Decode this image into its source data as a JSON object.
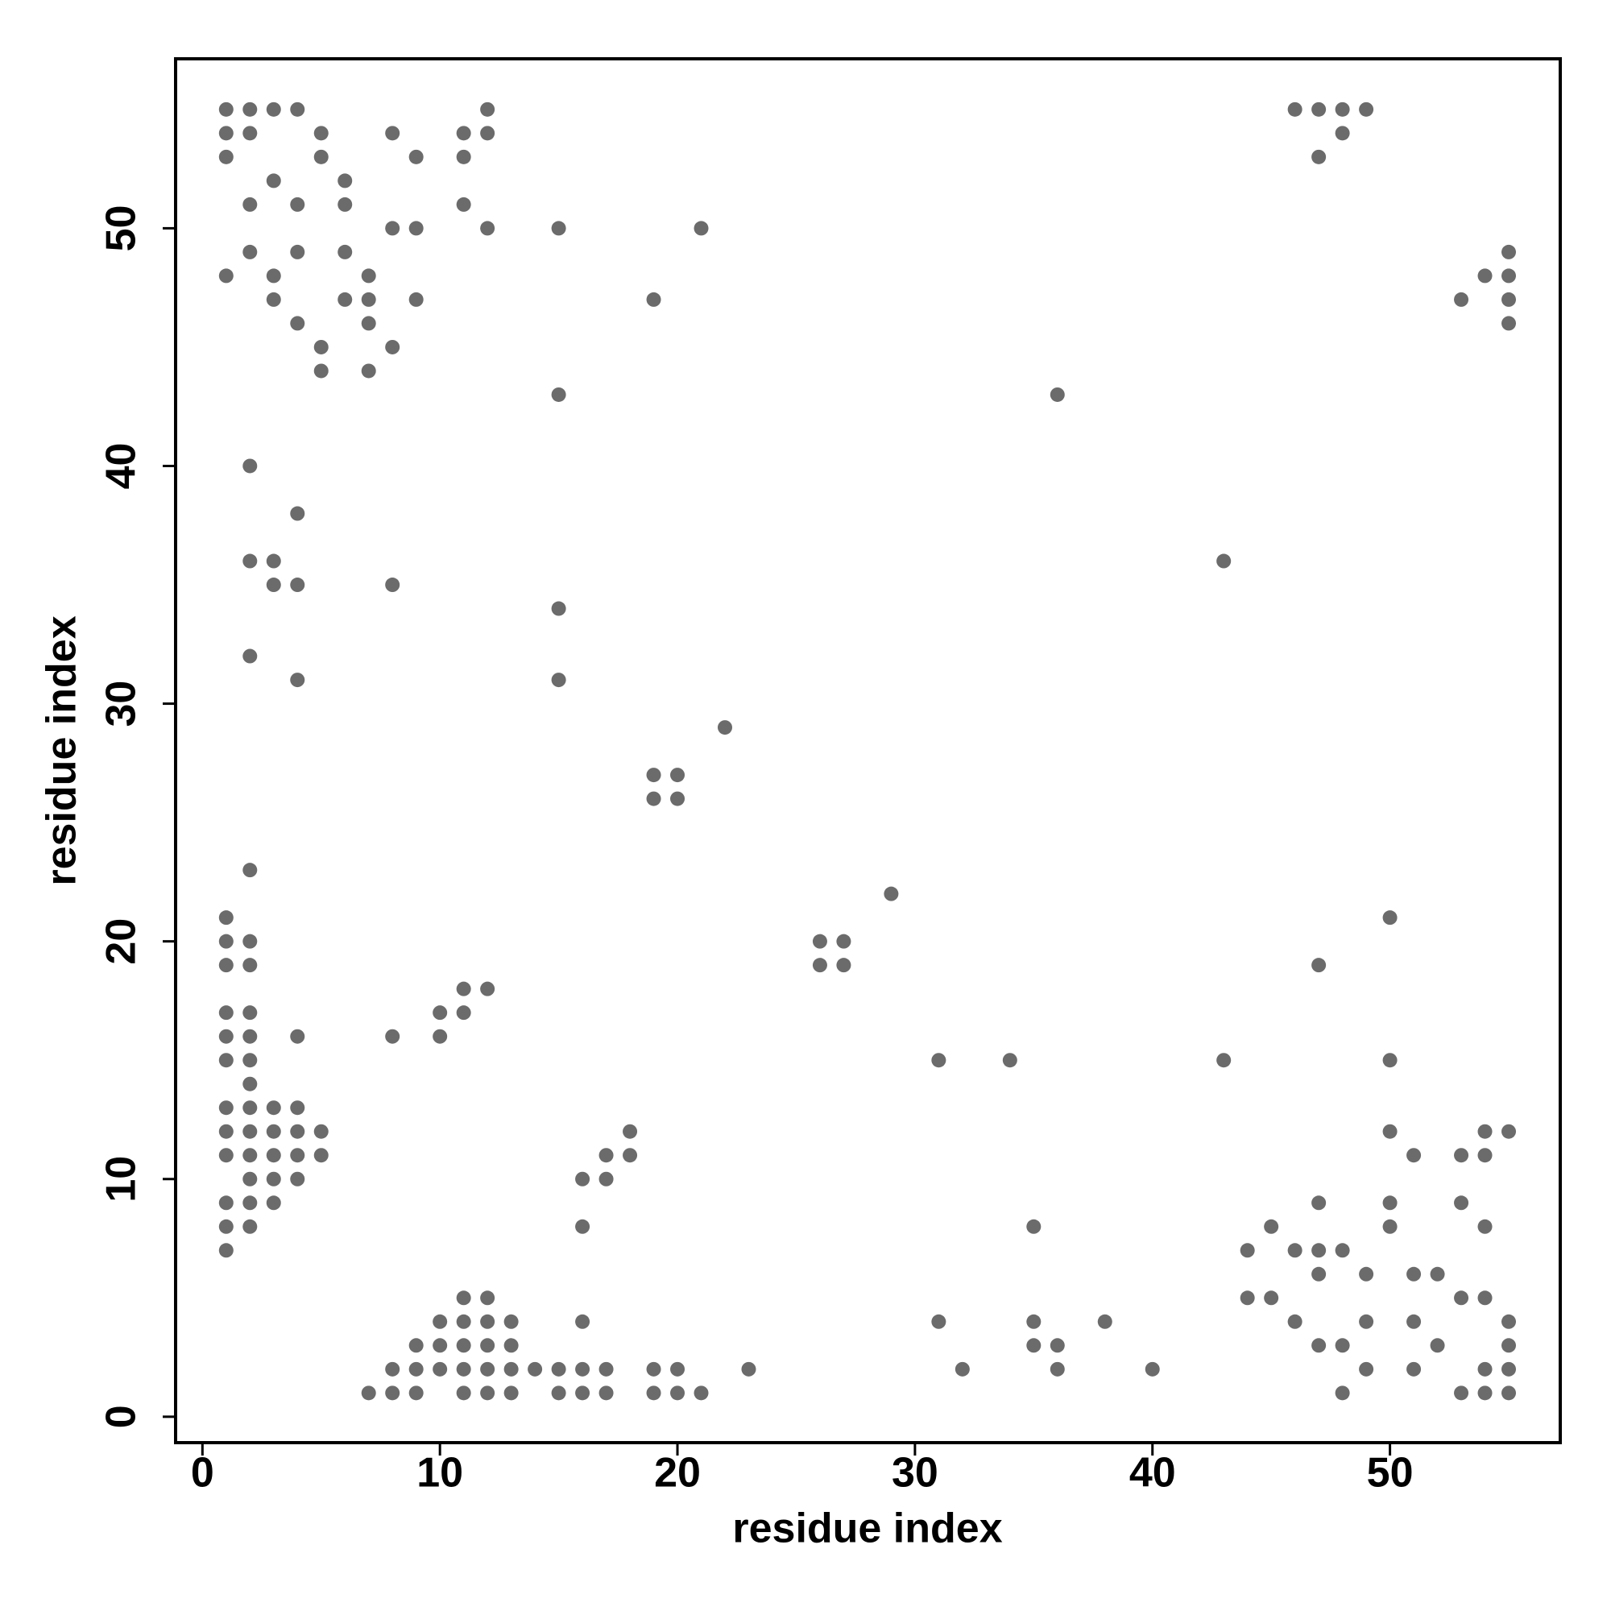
{
  "chart_data": {
    "type": "scatter",
    "x_label": "residue index",
    "y_label": "residue index",
    "color": "#6b6b6b",
    "xlim": [
      -1.13,
      57.17
    ],
    "ylim": [
      -1.09,
      57.13
    ],
    "xticks": [
      0,
      10,
      20,
      30,
      40,
      50
    ],
    "yticks": [
      0,
      10,
      20,
      30,
      40,
      50
    ],
    "x": [
      1,
      2,
      3,
      4,
      12,
      46,
      47,
      48,
      49,
      1,
      2,
      5,
      8,
      11,
      12,
      48,
      1,
      5,
      9,
      11,
      47,
      3,
      6,
      2,
      4,
      6,
      11,
      8,
      9,
      12,
      15,
      21,
      2,
      4,
      6,
      55,
      1,
      3,
      7,
      54,
      55,
      3,
      6,
      7,
      9,
      19,
      53,
      55,
      4,
      7,
      55,
      5,
      8,
      5,
      7,
      15,
      36,
      2,
      4,
      2,
      3,
      43,
      3,
      4,
      8,
      15,
      2,
      4,
      15,
      22,
      19,
      20,
      19,
      20,
      2,
      29,
      1,
      50,
      1,
      2,
      26,
      27,
      1,
      2,
      26,
      27,
      47,
      11,
      12,
      1,
      2,
      10,
      11,
      1,
      2,
      4,
      8,
      10,
      1,
      2,
      31,
      34,
      43,
      50,
      2,
      1,
      2,
      3,
      4,
      1,
      2,
      3,
      4,
      5,
      18,
      50,
      54,
      55,
      1,
      2,
      3,
      4,
      5,
      17,
      18,
      51,
      53,
      54,
      2,
      3,
      4,
      16,
      17,
      1,
      2,
      3,
      47,
      50,
      53,
      1,
      2,
      16,
      35,
      45,
      50,
      54,
      1,
      44,
      46,
      47,
      48,
      47,
      49,
      51,
      52,
      11,
      12,
      44,
      45,
      53,
      54,
      10,
      11,
      12,
      13,
      16,
      31,
      35,
      38,
      46,
      49,
      51,
      55,
      9,
      10,
      11,
      12,
      13,
      35,
      36,
      47,
      48,
      52,
      55,
      8,
      9,
      10,
      11,
      12,
      13,
      14,
      15,
      16,
      17,
      19,
      20,
      23,
      32,
      36,
      40,
      49,
      51,
      54,
      55,
      7,
      8,
      9,
      11,
      12,
      13,
      15,
      16,
      17,
      19,
      20,
      21,
      48,
      53,
      54,
      55
    ],
    "y": [
      55,
      55,
      55,
      55,
      55,
      55,
      55,
      55,
      55,
      54,
      54,
      54,
      54,
      54,
      54,
      54,
      53,
      53,
      53,
      53,
      53,
      52,
      52,
      51,
      51,
      51,
      51,
      50,
      50,
      50,
      50,
      50,
      49,
      49,
      49,
      49,
      48,
      48,
      48,
      48,
      48,
      47,
      47,
      47,
      47,
      47,
      47,
      47,
      46,
      46,
      46,
      45,
      45,
      44,
      44,
      43,
      43,
      40,
      38,
      36,
      36,
      36,
      35,
      35,
      35,
      34,
      32,
      31,
      31,
      29,
      27,
      27,
      26,
      26,
      23,
      22,
      21,
      21,
      20,
      20,
      20,
      20,
      19,
      19,
      19,
      19,
      19,
      18,
      18,
      17,
      17,
      17,
      17,
      16,
      16,
      16,
      16,
      16,
      15,
      15,
      15,
      15,
      15,
      15,
      14,
      13,
      13,
      13,
      13,
      12,
      12,
      12,
      12,
      12,
      12,
      12,
      12,
      12,
      11,
      11,
      11,
      11,
      11,
      11,
      11,
      11,
      11,
      11,
      10,
      10,
      10,
      10,
      10,
      9,
      9,
      9,
      9,
      9,
      9,
      8,
      8,
      8,
      8,
      8,
      8,
      8,
      7,
      7,
      7,
      7,
      7,
      6,
      6,
      6,
      6,
      5,
      5,
      5,
      5,
      5,
      5,
      4,
      4,
      4,
      4,
      4,
      4,
      4,
      4,
      4,
      4,
      4,
      4,
      3,
      3,
      3,
      3,
      3,
      3,
      3,
      3,
      3,
      3,
      3,
      2,
      2,
      2,
      2,
      2,
      2,
      2,
      2,
      2,
      2,
      2,
      2,
      2,
      2,
      2,
      2,
      2,
      2,
      2,
      2,
      1,
      1,
      1,
      1,
      1,
      1,
      1,
      1,
      1,
      1,
      1,
      1,
      1,
      1,
      1,
      1
    ]
  }
}
